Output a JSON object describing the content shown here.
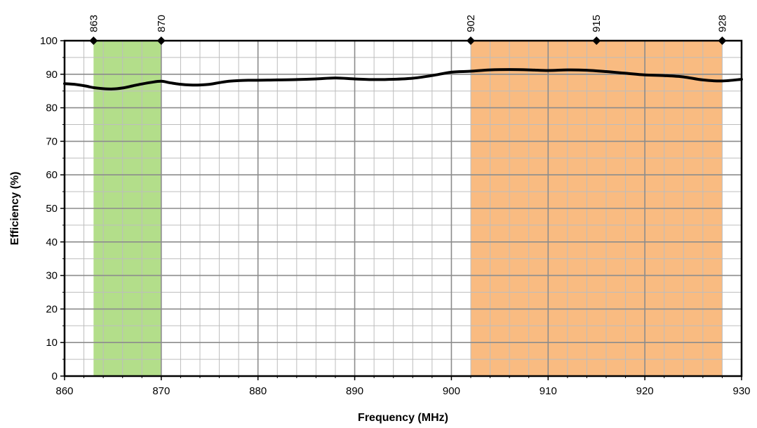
{
  "chart_data": {
    "type": "line",
    "xlabel": "Frequency (MHz)",
    "ylabel": "Efficiency (%)",
    "xlim": [
      860,
      930
    ],
    "ylim": [
      0,
      100
    ],
    "x_ticks": [
      860,
      870,
      880,
      890,
      900,
      910,
      920,
      930
    ],
    "y_ticks": [
      0,
      10,
      20,
      30,
      40,
      50,
      60,
      70,
      80,
      90,
      100
    ],
    "x_minor_step": 2,
    "y_minor_step": 5,
    "grid": true,
    "bands": [
      {
        "from": 863,
        "to": 870,
        "color": "#b3de8a"
      },
      {
        "from": 902,
        "to": 928,
        "color": "#f9bb81"
      }
    ],
    "markers": [
      {
        "x": 863,
        "label": "863"
      },
      {
        "x": 870,
        "label": "870"
      },
      {
        "x": 902,
        "label": "902"
      },
      {
        "x": 915,
        "label": "915"
      },
      {
        "x": 928,
        "label": "928"
      }
    ],
    "series": [
      {
        "color": "#000000",
        "x": [
          860,
          861,
          862,
          863,
          864,
          865,
          866,
          867,
          868,
          869,
          870,
          871,
          872,
          873,
          874,
          875,
          876,
          877,
          878,
          879,
          880,
          882,
          884,
          886,
          888,
          890,
          892,
          894,
          896,
          898,
          900,
          902,
          904,
          906,
          908,
          910,
          912,
          914,
          916,
          918,
          920,
          922,
          924,
          926,
          928,
          930
        ],
        "values": [
          87.2,
          87.0,
          86.6,
          86.0,
          85.7,
          85.6,
          85.9,
          86.5,
          87.1,
          87.6,
          87.9,
          87.4,
          87.0,
          86.8,
          86.8,
          87.0,
          87.5,
          87.9,
          88.1,
          88.2,
          88.2,
          88.3,
          88.4,
          88.6,
          88.9,
          88.6,
          88.4,
          88.5,
          88.8,
          89.6,
          90.6,
          90.9,
          91.3,
          91.4,
          91.3,
          91.1,
          91.3,
          91.2,
          90.8,
          90.3,
          89.8,
          89.6,
          89.2,
          88.3,
          88.0,
          88.5
        ]
      }
    ]
  }
}
